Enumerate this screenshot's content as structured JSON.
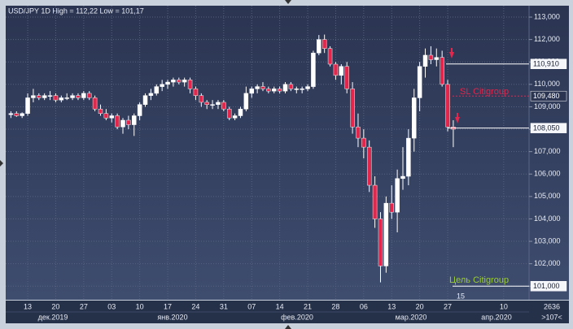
{
  "chart_data": {
    "type": "candlestick",
    "title": "USD/JPY 1D High = 112,22 Low = 101,17",
    "categories": [
      null,
      null,
      null,
      "13",
      null,
      null,
      null,
      null,
      "20",
      null,
      null,
      null,
      null,
      "27",
      null,
      null,
      null,
      null,
      "03",
      null,
      null,
      null,
      null,
      "10",
      null,
      null,
      null,
      null,
      "17",
      null,
      null,
      null,
      null,
      "24",
      null,
      null,
      null,
      null,
      "31",
      null,
      null,
      null,
      null,
      "07",
      null,
      null,
      null,
      null,
      "14",
      null,
      null,
      null,
      null,
      "21",
      null,
      null,
      null,
      null,
      "28",
      null,
      null,
      null,
      null,
      "06",
      null,
      null,
      null,
      null,
      "13",
      null,
      null,
      null,
      null,
      "20",
      null,
      null,
      null,
      null,
      "27",
      null,
      null,
      null,
      null,
      null,
      null,
      null,
      null,
      null,
      "10"
    ],
    "x_groups": [
      "дек.2019",
      "янв.2020",
      "фев.2020",
      "мар.2020",
      "апр.2020"
    ],
    "open": [
      108.65,
      108.7,
      108.6,
      108.7,
      109.4,
      109.5,
      109.4,
      109.5,
      109.5,
      109.3,
      109.4,
      109.4,
      109.5,
      109.4,
      109.6,
      109.4,
      108.9,
      108.7,
      108.5,
      108.6,
      108.1,
      108.4,
      108.2,
      108.6,
      109.1,
      109.5,
      109.6,
      109.9,
      110.0,
      110.1,
      110.2,
      110.1,
      110.2,
      109.8,
      109.5,
      109.2,
      109.1,
      109.1,
      109.2,
      108.9,
      108.5,
      108.6,
      108.9,
      109.6,
      109.8,
      109.9,
      109.8,
      109.7,
      109.8,
      109.7,
      110.0,
      109.8,
      109.8,
      109.8,
      109.9,
      111.4,
      112.0,
      111.6,
      110.9,
      110.4,
      110.8,
      109.8,
      108.1,
      107.6,
      107.2,
      105.5,
      104.0,
      101.9,
      104.7,
      104.3,
      105.8,
      105.9,
      107.6,
      109.4,
      110.8,
      111.3,
      111.1,
      111.2,
      110.0,
      108.1,
      null,
      null,
      null,
      null,
      null,
      null,
      null,
      null,
      null
    ],
    "high": [
      108.8,
      108.8,
      108.75,
      109.6,
      109.8,
      109.6,
      109.6,
      109.7,
      109.6,
      109.5,
      109.6,
      109.6,
      109.6,
      109.7,
      109.7,
      109.5,
      109.1,
      108.9,
      108.7,
      108.7,
      108.5,
      108.6,
      108.7,
      109.2,
      109.6,
      109.8,
      110.0,
      110.2,
      110.2,
      110.3,
      110.3,
      110.3,
      110.3,
      109.9,
      109.6,
      109.3,
      109.3,
      109.3,
      109.3,
      109.0,
      108.7,
      109.0,
      109.9,
      109.9,
      110.0,
      110.1,
      109.9,
      109.9,
      109.9,
      110.1,
      110.1,
      109.9,
      109.9,
      110.0,
      111.5,
      112.2,
      112.22,
      111.7,
      111.0,
      110.9,
      111.0,
      110.1,
      108.7,
      108.0,
      107.5,
      105.9,
      104.3,
      105.0,
      105.5,
      106.2,
      107.2,
      108.0,
      109.8,
      111.0,
      111.6,
      111.7,
      111.6,
      111.5,
      110.2,
      108.4,
      null,
      null,
      null,
      null,
      null,
      null,
      null,
      null,
      null
    ],
    "low": [
      108.5,
      108.55,
      108.5,
      108.6,
      109.2,
      109.3,
      109.3,
      109.3,
      109.2,
      109.2,
      109.3,
      109.3,
      109.3,
      109.3,
      109.3,
      108.8,
      108.6,
      108.4,
      108.3,
      108.0,
      107.8,
      108.0,
      107.7,
      108.4,
      109.0,
      109.3,
      109.5,
      109.7,
      109.8,
      109.9,
      110.0,
      109.9,
      109.6,
      109.3,
      109.0,
      108.9,
      108.9,
      108.9,
      108.8,
      108.4,
      108.4,
      108.5,
      108.8,
      109.4,
      109.6,
      109.7,
      109.6,
      109.6,
      109.6,
      109.6,
      109.7,
      109.6,
      109.6,
      109.7,
      109.8,
      111.3,
      111.4,
      110.8,
      110.2,
      110.0,
      109.6,
      107.8,
      107.2,
      106.7,
      105.2,
      103.6,
      101.17,
      101.6,
      104.0,
      103.4,
      105.3,
      105.5,
      107.0,
      108.8,
      110.3,
      110.9,
      110.8,
      109.9,
      107.9,
      107.2,
      null,
      null,
      null,
      null,
      null,
      null,
      null,
      null,
      null
    ],
    "close": [
      108.7,
      108.6,
      108.7,
      109.4,
      109.5,
      109.4,
      109.5,
      109.5,
      109.3,
      109.4,
      109.4,
      109.5,
      109.4,
      109.6,
      109.4,
      108.9,
      108.7,
      108.5,
      108.6,
      108.1,
      108.4,
      108.2,
      108.6,
      109.1,
      109.5,
      109.6,
      109.9,
      110.0,
      110.1,
      110.2,
      110.1,
      110.2,
      109.8,
      109.5,
      109.2,
      109.1,
      109.1,
      109.2,
      108.9,
      108.5,
      108.6,
      108.9,
      109.6,
      109.8,
      109.9,
      109.8,
      109.7,
      109.8,
      109.7,
      110.0,
      109.8,
      109.8,
      109.8,
      109.9,
      111.4,
      112.0,
      111.6,
      110.9,
      110.4,
      110.8,
      109.8,
      108.1,
      107.6,
      107.2,
      105.5,
      104.0,
      101.9,
      104.7,
      104.3,
      105.8,
      105.9,
      107.6,
      109.4,
      110.8,
      111.3,
      111.1,
      111.2,
      110.0,
      108.1,
      108.0,
      null,
      null,
      null,
      null,
      null,
      null,
      null,
      null,
      null
    ],
    "up_color": "#ffffff",
    "down_color": "#e3264c",
    "ylim": [
      100.43,
      113.4
    ],
    "yticks": [
      {
        "value": 101,
        "label": "101,000"
      },
      {
        "value": 102,
        "label": "102,000"
      },
      {
        "value": 103,
        "label": "103,000"
      },
      {
        "value": 104,
        "label": "104,000"
      },
      {
        "value": 105,
        "label": "105,000"
      },
      {
        "value": 106,
        "label": "106,000"
      },
      {
        "value": 107,
        "label": "107,000"
      },
      {
        "value": 108,
        "label": "108,000"
      },
      {
        "value": 109,
        "label": "109,000"
      },
      {
        "value": 110,
        "label": "110,000"
      },
      {
        "value": 111,
        "label": "111,000"
      },
      {
        "value": 112,
        "label": "112,000"
      },
      {
        "value": 113,
        "label": "113,000"
      }
    ],
    "grid": true,
    "price_levels": [
      {
        "value": 110.91,
        "label": "110,910",
        "color": "#ffffff"
      },
      {
        "value": 109.48,
        "label": "109,480",
        "color": "#e3264c"
      },
      {
        "value": 108.05,
        "label": "108,050",
        "color": "#ffffff"
      },
      {
        "value": 101.0,
        "label": "101,000",
        "color": "#ffffff"
      }
    ],
    "annotations": [
      {
        "text": "SL Citigroup",
        "color": "#e3264c"
      },
      {
        "text": "Цель Citigroup",
        "color": "#9acd32"
      }
    ],
    "footer": {
      "bar_count": "2636",
      "cursor_label": ">107<",
      "marker": "15"
    }
  }
}
